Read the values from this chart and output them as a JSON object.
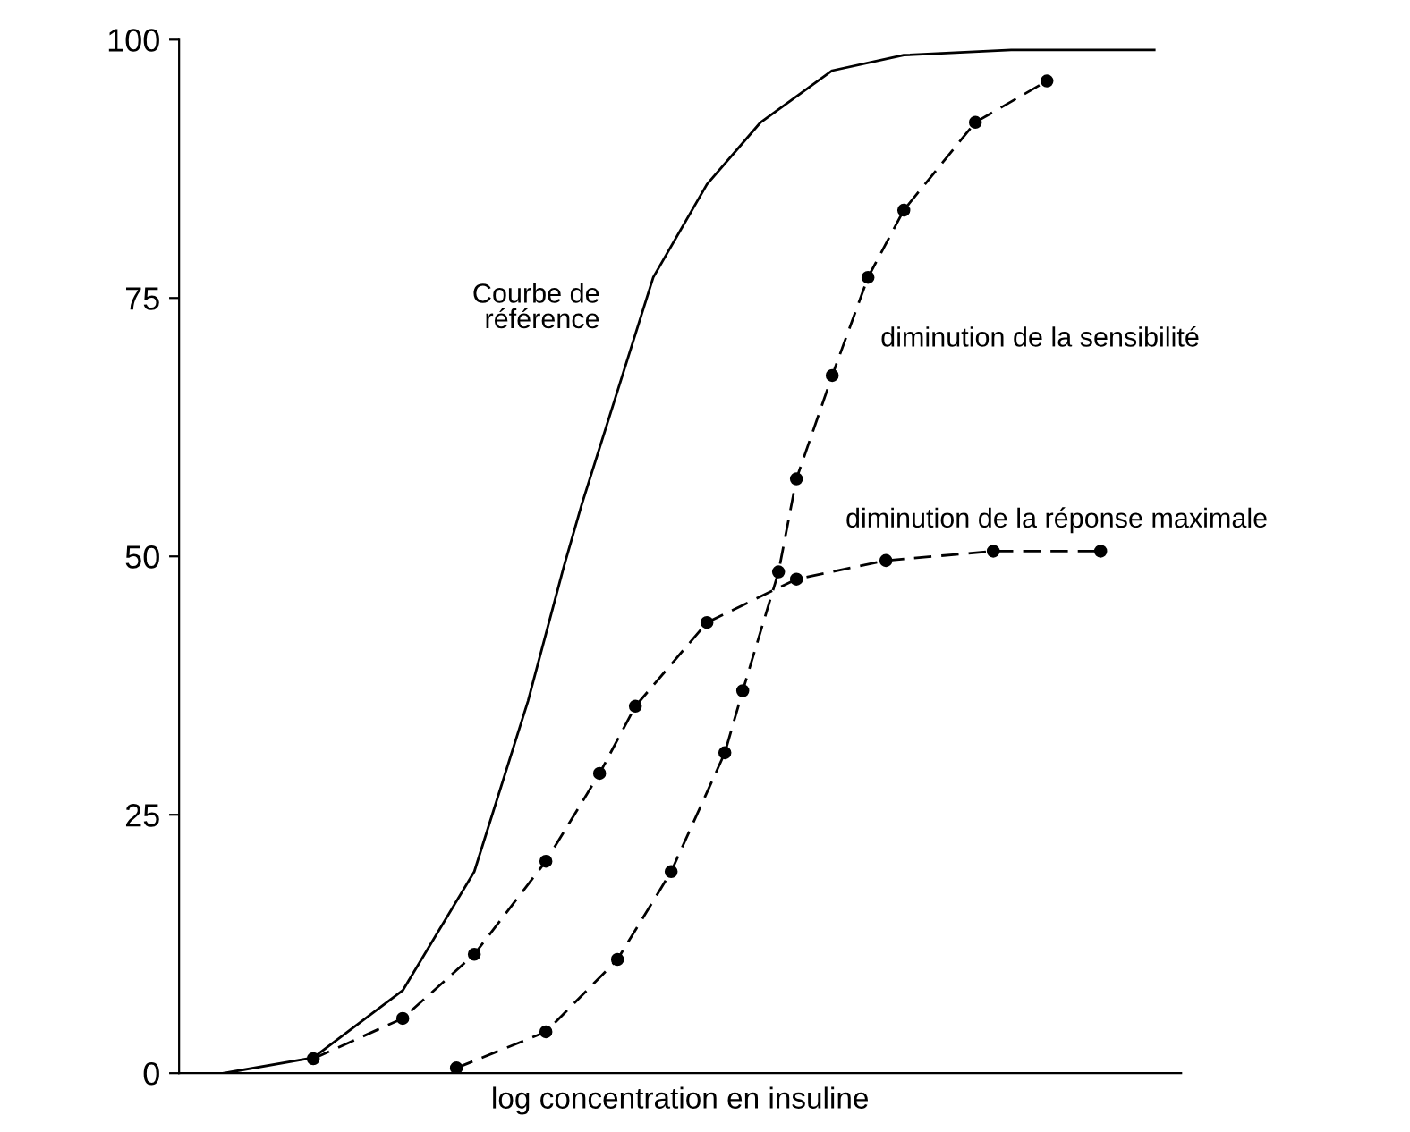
{
  "chart_data": {
    "type": "line",
    "xlabel": "log concentration en insuline",
    "categories": [
      null,
      null,
      null,
      null,
      null,
      null,
      null,
      null,
      null,
      null,
      null,
      null,
      null,
      null,
      null,
      null,
      null,
      null,
      null,
      null,
      null,
      null,
      null,
      null,
      null,
      null,
      null,
      null,
      null,
      null,
      null,
      null,
      null,
      null,
      null,
      null,
      null,
      null,
      null,
      null,
      null,
      null,
      null,
      null,
      null,
      null,
      null,
      null,
      null,
      null,
      null,
      null,
      null,
      null,
      null,
      null
    ],
    "series": [
      {
        "name": "Courbe de\nréférence",
        "color": "#000000",
        "line_style": "solid",
        "marker": "none",
        "values": [
          null,
          null,
          0,
          null,
          null,
          null,
          null,
          1.5,
          null,
          null,
          null,
          null,
          8,
          null,
          null,
          null,
          19.5,
          null,
          null,
          36,
          null,
          49,
          55,
          null,
          66,
          null,
          77,
          null,
          null,
          86,
          null,
          null,
          92,
          null,
          null,
          null,
          97,
          null,
          null,
          null,
          98.5,
          null,
          null,
          null,
          null,
          null,
          99,
          null,
          null,
          null,
          null,
          null,
          null,
          null,
          99,
          null
        ]
      },
      {
        "name": "diminution de la sensibilité",
        "color": "#000000",
        "line_style": "dashed",
        "marker": "circle",
        "values": [
          null,
          null,
          null,
          null,
          null,
          null,
          null,
          null,
          null,
          null,
          null,
          null,
          null,
          null,
          null,
          0.5,
          null,
          null,
          null,
          null,
          4,
          null,
          null,
          null,
          11,
          null,
          null,
          19.5,
          null,
          null,
          31,
          37,
          null,
          48.5,
          57.5,
          null,
          67.5,
          null,
          77,
          null,
          83.5,
          null,
          null,
          null,
          92,
          null,
          null,
          null,
          96,
          null,
          null,
          null,
          null,
          null,
          null,
          null
        ]
      },
      {
        "name": "diminution de la réponse maximale",
        "color": "#000000",
        "line_style": "dashed",
        "marker": "circle",
        "values": [
          null,
          null,
          null,
          null,
          null,
          null,
          null,
          1.4,
          null,
          null,
          null,
          null,
          5.3,
          null,
          null,
          null,
          11.5,
          null,
          null,
          null,
          20.5,
          null,
          null,
          29,
          null,
          35.5,
          null,
          null,
          null,
          43.6,
          null,
          null,
          null,
          null,
          47.8,
          null,
          null,
          null,
          null,
          49.6,
          null,
          null,
          null,
          null,
          null,
          50.5,
          null,
          null,
          null,
          null,
          null,
          50.5,
          null,
          null,
          null,
          null
        ]
      }
    ],
    "ylim": [
      0,
      100
    ],
    "yticks": [
      0,
      25,
      50,
      75,
      100
    ],
    "grid": false,
    "legend": false
  }
}
